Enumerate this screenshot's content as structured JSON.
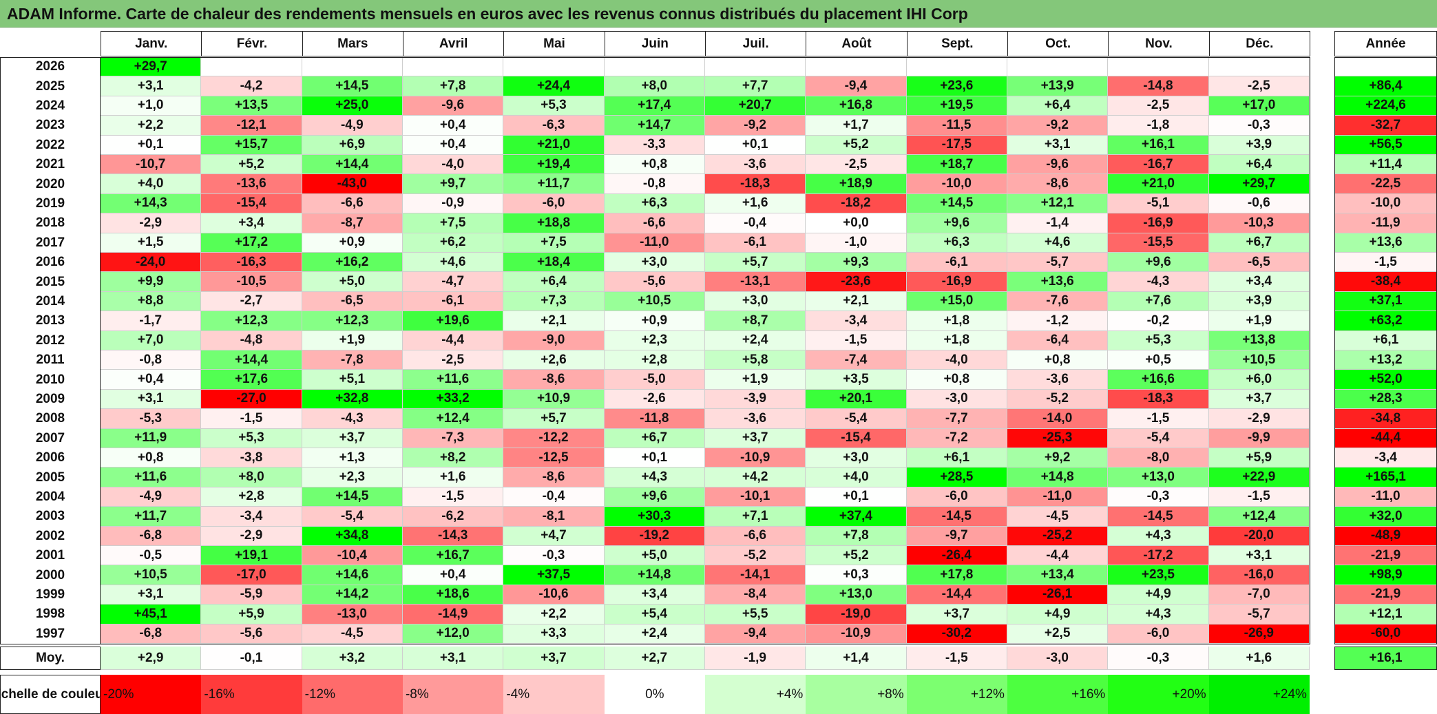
{
  "title": "ADAM Informe. Carte de chaleur des rendements mensuels en euros avec les revenus connus distribués du placement IHI Corp",
  "chart_data": {
    "type": "heatmap",
    "months": [
      "Janv.",
      "Févr.",
      "Mars",
      "Avril",
      "Mai",
      "Juin",
      "Juil.",
      "Août",
      "Sept.",
      "Oct.",
      "Nov.",
      "Déc."
    ],
    "year_header": "Année",
    "rows": [
      {
        "year": "2026",
        "values": [
          "+29,7",
          "",
          "",
          "",
          "",
          "",
          "",
          "",
          "",
          "",
          "",
          ""
        ],
        "annual": ""
      },
      {
        "year": "2025",
        "values": [
          "+3,1",
          "-4,2",
          "+14,5",
          "+7,8",
          "+24,4",
          "+8,0",
          "+7,7",
          "-9,4",
          "+23,6",
          "+13,9",
          "-14,8",
          "-2,5"
        ],
        "annual": "+86,4"
      },
      {
        "year": "2024",
        "values": [
          "+1,0",
          "+13,5",
          "+25,0",
          "-9,6",
          "+5,3",
          "+17,4",
          "+20,7",
          "+16,8",
          "+19,5",
          "+6,4",
          "-2,5",
          "+17,0"
        ],
        "annual": "+224,6"
      },
      {
        "year": "2023",
        "values": [
          "+2,2",
          "-12,1",
          "-4,9",
          "+0,4",
          "-6,3",
          "+14,7",
          "-9,2",
          "+1,7",
          "-11,5",
          "-9,2",
          "-1,8",
          "-0,3"
        ],
        "annual": "-32,7"
      },
      {
        "year": "2022",
        "values": [
          "+0,1",
          "+15,7",
          "+6,9",
          "+0,4",
          "+21,0",
          "-3,3",
          "+0,1",
          "+5,2",
          "-17,5",
          "+3,1",
          "+16,1",
          "+3,9"
        ],
        "annual": "+56,5"
      },
      {
        "year": "2021",
        "values": [
          "-10,7",
          "+5,2",
          "+14,4",
          "-4,0",
          "+19,4",
          "+0,8",
          "-3,6",
          "-2,5",
          "+18,7",
          "-9,6",
          "-16,7",
          "+6,4"
        ],
        "annual": "+11,4"
      },
      {
        "year": "2020",
        "values": [
          "+4,0",
          "-13,6",
          "-43,0",
          "+9,7",
          "+11,7",
          "-0,8",
          "-18,3",
          "+18,9",
          "-10,0",
          "-8,6",
          "+21,0",
          "+29,7"
        ],
        "annual": "-22,5"
      },
      {
        "year": "2019",
        "values": [
          "+14,3",
          "-15,4",
          "-6,6",
          "-0,9",
          "-6,0",
          "+6,3",
          "+1,6",
          "-18,2",
          "+14,5",
          "+12,1",
          "-5,1",
          "-0,6"
        ],
        "annual": "-10,0"
      },
      {
        "year": "2018",
        "values": [
          "-2,9",
          "+3,4",
          "-8,7",
          "+7,5",
          "+18,8",
          "-6,6",
          "-0,4",
          "+0,0",
          "+9,6",
          "-1,4",
          "-16,9",
          "-10,3"
        ],
        "annual": "-11,9"
      },
      {
        "year": "2017",
        "values": [
          "+1,5",
          "+17,2",
          "+0,9",
          "+6,2",
          "+7,5",
          "-11,0",
          "-6,1",
          "-1,0",
          "+6,3",
          "+4,6",
          "-15,5",
          "+6,7"
        ],
        "annual": "+13,6"
      },
      {
        "year": "2016",
        "values": [
          "-24,0",
          "-16,3",
          "+16,2",
          "+4,6",
          "+18,4",
          "+3,0",
          "+5,7",
          "+9,3",
          "-6,1",
          "-5,7",
          "+9,6",
          "-6,5"
        ],
        "annual": "-1,5"
      },
      {
        "year": "2015",
        "values": [
          "+9,9",
          "-10,5",
          "+5,0",
          "-4,7",
          "+6,4",
          "-5,6",
          "-13,1",
          "-23,6",
          "-16,9",
          "+13,6",
          "-4,3",
          "+3,4"
        ],
        "annual": "-38,4"
      },
      {
        "year": "2014",
        "values": [
          "+8,8",
          "-2,7",
          "-6,5",
          "-6,1",
          "+7,3",
          "+10,5",
          "+3,0",
          "+2,1",
          "+15,0",
          "-7,6",
          "+7,6",
          "+3,9"
        ],
        "annual": "+37,1"
      },
      {
        "year": "2013",
        "values": [
          "-1,7",
          "+12,3",
          "+12,3",
          "+19,6",
          "+2,1",
          "+0,9",
          "+8,7",
          "-3,4",
          "+1,8",
          "-1,2",
          "-0,2",
          "+1,9"
        ],
        "annual": "+63,2"
      },
      {
        "year": "2012",
        "values": [
          "+7,0",
          "-4,8",
          "+1,9",
          "-4,4",
          "-9,0",
          "+2,3",
          "+2,4",
          "-1,5",
          "+1,8",
          "-6,4",
          "+5,3",
          "+13,8"
        ],
        "annual": "+6,1"
      },
      {
        "year": "2011",
        "values": [
          "-0,8",
          "+14,4",
          "-7,8",
          "-2,5",
          "+2,6",
          "+2,8",
          "+5,8",
          "-7,4",
          "-4,0",
          "+0,8",
          "+0,5",
          "+10,5"
        ],
        "annual": "+13,2"
      },
      {
        "year": "2010",
        "values": [
          "+0,4",
          "+17,6",
          "+5,1",
          "+11,6",
          "-8,6",
          "-5,0",
          "+1,9",
          "+3,5",
          "+0,8",
          "-3,6",
          "+16,6",
          "+6,0"
        ],
        "annual": "+52,0"
      },
      {
        "year": "2009",
        "values": [
          "+3,1",
          "-27,0",
          "+32,8",
          "+33,2",
          "+10,9",
          "-2,6",
          "-3,9",
          "+20,1",
          "-3,0",
          "-5,2",
          "-18,3",
          "+3,7"
        ],
        "annual": "+28,3"
      },
      {
        "year": "2008",
        "values": [
          "-5,3",
          "-1,5",
          "-4,3",
          "+12,4",
          "+5,7",
          "-11,8",
          "-3,6",
          "-5,4",
          "-7,7",
          "-14,0",
          "-1,5",
          "-2,9"
        ],
        "annual": "-34,8"
      },
      {
        "year": "2007",
        "values": [
          "+11,9",
          "+5,3",
          "+3,7",
          "-7,3",
          "-12,2",
          "+6,7",
          "+3,7",
          "-15,4",
          "-7,2",
          "-25,3",
          "-5,4",
          "-9,9"
        ],
        "annual": "-44,4"
      },
      {
        "year": "2006",
        "values": [
          "+0,8",
          "-3,8",
          "+1,3",
          "+8,2",
          "-12,5",
          "+0,1",
          "-10,9",
          "+3,0",
          "+6,1",
          "+9,2",
          "-8,0",
          "+5,9"
        ],
        "annual": "-3,4"
      },
      {
        "year": "2005",
        "values": [
          "+11,6",
          "+8,0",
          "+2,3",
          "+1,6",
          "-8,6",
          "+4,3",
          "+4,2",
          "+4,0",
          "+28,5",
          "+14,8",
          "+13,0",
          "+22,9"
        ],
        "annual": "+165,1"
      },
      {
        "year": "2004",
        "values": [
          "-4,9",
          "+2,8",
          "+14,5",
          "-1,5",
          "-0,4",
          "+9,6",
          "-10,1",
          "+0,1",
          "-6,0",
          "-11,0",
          "-0,3",
          "-1,5"
        ],
        "annual": "-11,0"
      },
      {
        "year": "2003",
        "values": [
          "+11,7",
          "-3,4",
          "-5,4",
          "-6,2",
          "-8,1",
          "+30,3",
          "+7,1",
          "+37,4",
          "-14,5",
          "-4,5",
          "-14,5",
          "+12,4"
        ],
        "annual": "+32,0"
      },
      {
        "year": "2002",
        "values": [
          "-6,8",
          "-2,9",
          "+34,8",
          "-14,3",
          "+4,7",
          "-19,2",
          "-6,6",
          "+7,8",
          "-9,7",
          "-25,2",
          "+4,3",
          "-20,0"
        ],
        "annual": "-48,9"
      },
      {
        "year": "2001",
        "values": [
          "-0,5",
          "+19,1",
          "-10,4",
          "+16,7",
          "-0,3",
          "+5,0",
          "-5,2",
          "+5,2",
          "-26,4",
          "-4,4",
          "-17,2",
          "+3,1"
        ],
        "annual": "-21,9"
      },
      {
        "year": "2000",
        "values": [
          "+10,5",
          "-17,0",
          "+14,6",
          "+0,4",
          "+37,5",
          "+14,8",
          "-14,1",
          "+0,3",
          "+17,8",
          "+13,4",
          "+23,5",
          "-16,0"
        ],
        "annual": "+98,9"
      },
      {
        "year": "1999",
        "values": [
          "+3,1",
          "-5,9",
          "+14,2",
          "+18,6",
          "-10,6",
          "+3,4",
          "-8,4",
          "+13,0",
          "-14,4",
          "-26,1",
          "+4,9",
          "-7,0"
        ],
        "annual": "-21,9"
      },
      {
        "year": "1998",
        "values": [
          "+45,1",
          "+5,9",
          "-13,0",
          "-14,9",
          "+2,2",
          "+5,4",
          "+5,5",
          "-19,0",
          "+3,7",
          "+4,9",
          "+4,3",
          "-5,7"
        ],
        "annual": "+12,1"
      },
      {
        "year": "1997",
        "values": [
          "-6,8",
          "-5,6",
          "-4,5",
          "+12,0",
          "+3,3",
          "+2,4",
          "-9,4",
          "-10,9",
          "-30,2",
          "+2,5",
          "-6,0",
          "-26,9"
        ],
        "annual": "-60,0"
      }
    ],
    "average": {
      "label": "Moy.",
      "values": [
        "+2,9",
        "-0,1",
        "+3,2",
        "+3,1",
        "+3,7",
        "+2,7",
        "-1,9",
        "+1,4",
        "-1,5",
        "-3,0",
        "-0,3",
        "+1,6"
      ],
      "annual": "+16,1"
    },
    "color_scale": {
      "label": "Echelle de couleur",
      "steps": [
        "-20%",
        "-16%",
        "-12%",
        "-8%",
        "-4%",
        "0%",
        "+4%",
        "+8%",
        "+12%",
        "+16%",
        "+20%",
        "+24%"
      ],
      "colors": [
        "#ff0000",
        "#ff3b3b",
        "#ff6b6b",
        "#ff9a9a",
        "#ffc8c8",
        "#ffffff",
        "#d4ffd0",
        "#a8ffa0",
        "#7cff70",
        "#4dff40",
        "#22ff14",
        "#00f000"
      ],
      "negative_color": "#ff0000",
      "positive_color": "#00ff00",
      "neutral_color": "#ffffff"
    }
  }
}
